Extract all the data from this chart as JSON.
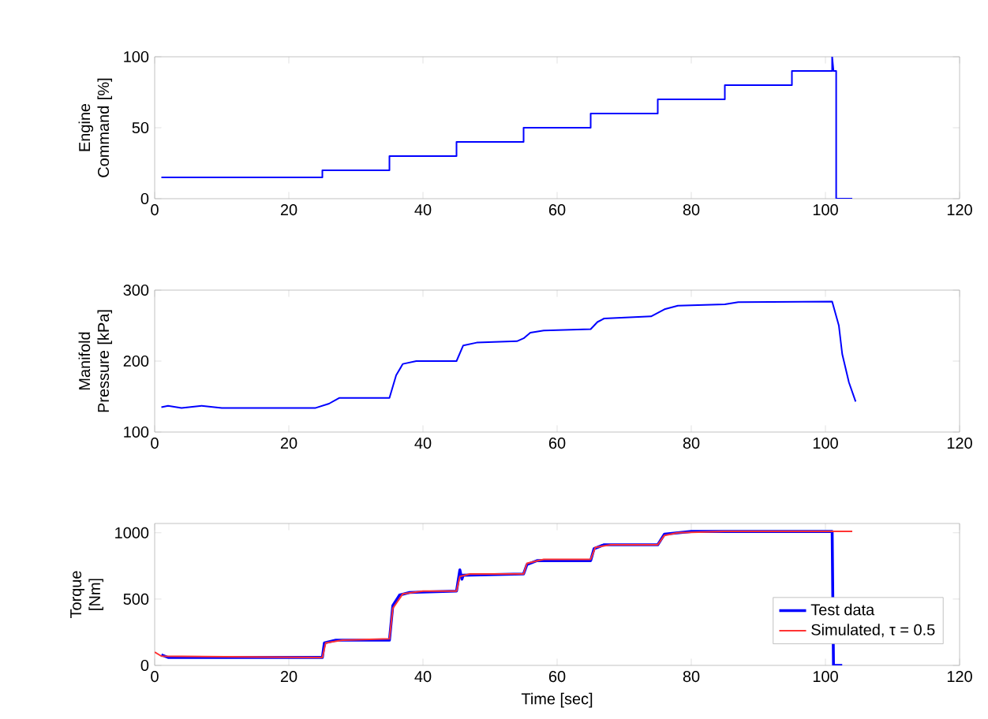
{
  "chart_data": [
    {
      "type": "line",
      "ylabel": "Engine Command [%]",
      "xlim": [
        0,
        120
      ],
      "xticks": [
        0,
        20,
        40,
        60,
        80,
        100,
        120
      ],
      "ylim": [
        0,
        100
      ],
      "yticks": [
        0,
        50,
        100
      ],
      "series": [
        {
          "color": "#0000ff",
          "x": [
            1,
            25,
            25,
            35,
            35,
            45,
            45,
            55,
            55,
            65,
            65,
            75,
            75,
            85,
            85,
            95,
            95,
            101,
            101,
            101.2,
            101.6,
            101.6,
            104
          ],
          "values": [
            15,
            15,
            20,
            20,
            30,
            30,
            40,
            40,
            50,
            50,
            60,
            60,
            70,
            70,
            80,
            80,
            90,
            90,
            100,
            90,
            90,
            0,
            0
          ]
        }
      ]
    },
    {
      "type": "line",
      "ylabel": "Manifold Pressure [kPa]",
      "xlim": [
        0,
        120
      ],
      "xticks": [
        0,
        20,
        40,
        60,
        80,
        100,
        120
      ],
      "ylim": [
        100,
        300
      ],
      "yticks": [
        100,
        200,
        300
      ],
      "series": [
        {
          "color": "#0000ff",
          "x": [
            1,
            2,
            4,
            7,
            10,
            24,
            26,
            27.5,
            35,
            36,
            37,
            39,
            45,
            46,
            48,
            54,
            55,
            56,
            58,
            65,
            66,
            67,
            74,
            76,
            78,
            85,
            87,
            101,
            102,
            102.5,
            103.5,
            104.5
          ],
          "values": [
            135,
            137,
            134,
            137,
            134,
            134,
            140,
            148,
            148,
            180,
            196,
            200,
            200,
            222,
            226,
            228,
            232,
            240,
            243,
            245,
            255,
            260,
            263,
            273,
            278,
            280,
            283,
            284,
            250,
            210,
            170,
            143
          ]
        }
      ]
    },
    {
      "type": "line",
      "ylabel": "Torque [Nm]",
      "xlabel": "Time [sec]",
      "xlim": [
        0,
        120
      ],
      "xticks": [
        0,
        20,
        40,
        60,
        80,
        100,
        120
      ],
      "ylim": [
        0,
        1070
      ],
      "yticks": [
        0,
        500,
        1000
      ],
      "legend": "bottom right",
      "series": [
        {
          "name": "Test data",
          "color": "#0000ff",
          "x": [
            1,
            2,
            25,
            25.3,
            27,
            35,
            35.5,
            36.5,
            38,
            45,
            45.5,
            45.8,
            46,
            55,
            55.5,
            57,
            65,
            65.5,
            67,
            75,
            76,
            80,
            101,
            101.2,
            102.5
          ],
          "values": [
            80,
            60,
            60,
            170,
            190,
            190,
            450,
            530,
            550,
            560,
            720,
            650,
            680,
            690,
            760,
            790,
            790,
            880,
            910,
            910,
            990,
            1010,
            1010,
            0,
            0
          ]
        },
        {
          "name": "Simulated, τ = 0.5",
          "color": "#ff3333",
          "x": [
            0,
            1,
            25,
            25.5,
            28,
            35,
            35.5,
            37,
            40,
            45,
            45.5,
            47,
            55,
            55.5,
            58,
            65,
            65.7,
            68,
            75,
            76,
            78,
            85,
            104
          ],
          "values": [
            100,
            70,
            60,
            170,
            190,
            200,
            430,
            540,
            560,
            560,
            670,
            690,
            690,
            770,
            800,
            800,
            890,
            910,
            910,
            980,
            1000,
            1010,
            1010
          ]
        }
      ]
    }
  ]
}
